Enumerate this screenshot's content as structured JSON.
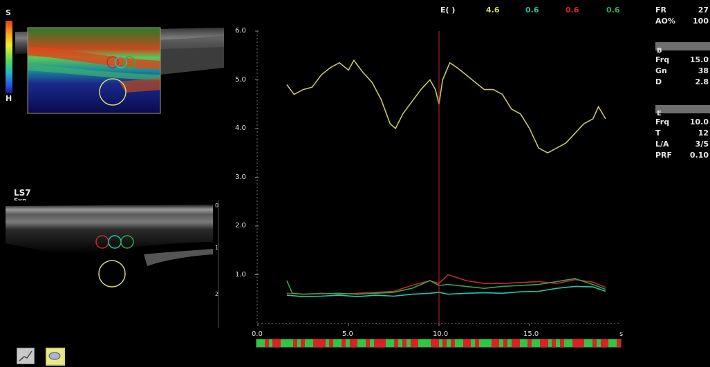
{
  "header": {
    "label": "E( )",
    "values": [
      {
        "text": "4.6",
        "color": "#d8d860"
      },
      {
        "text": "0.6",
        "color": "#20c0a8"
      },
      {
        "text": "0.6",
        "color": "#d02828"
      },
      {
        "text": "0.6",
        "color": "#30b050"
      }
    ]
  },
  "scale": {
    "top": "S",
    "bottom": "H"
  },
  "probe": {
    "name": "LS7",
    "mode": "Exp"
  },
  "depth_ticks": [
    "0",
    "1",
    "2"
  ],
  "params": {
    "top": [
      {
        "key": "FR",
        "value": "27"
      },
      {
        "key": "AO%",
        "value": "100"
      }
    ],
    "b_section": {
      "title": "B",
      "rows": [
        {
          "key": "Frq",
          "value": "15.0"
        },
        {
          "key": "Gn",
          "value": "38"
        },
        {
          "key": "D",
          "value": "2.8"
        }
      ]
    },
    "e_section": {
      "title": "E",
      "rows": [
        {
          "key": "Frq",
          "value": "10.0"
        },
        {
          "key": "T",
          "value": "12"
        },
        {
          "key": "L/A",
          "value": "3/5"
        },
        {
          "key": "PRF",
          "value": "0.10"
        }
      ]
    }
  },
  "chart_data": {
    "type": "line",
    "xlabel": "s",
    "ylabel": "",
    "xlim": [
      0,
      20
    ],
    "ylim": [
      0,
      6
    ],
    "x_ticks": [
      "0.0",
      "5.0",
      "10.0",
      "15.0"
    ],
    "y_ticks": [
      "1.0",
      "2.0",
      "3.0",
      "4.0",
      "5.0",
      "6.0"
    ],
    "cursor_x": 10.0,
    "series": [
      {
        "color": "#c8c860",
        "x": [
          1.6,
          2.0,
          2.5,
          3.0,
          3.5,
          4.0,
          4.5,
          5.0,
          5.3,
          5.8,
          6.3,
          6.8,
          7.3,
          7.6,
          8.0,
          8.5,
          9.0,
          9.5,
          9.8,
          10.0,
          10.2,
          10.6,
          11.0,
          11.5,
          12.0,
          12.5,
          13.0,
          13.5,
          14.0,
          14.5,
          15.0,
          15.5,
          16.0,
          16.5,
          17.0,
          17.5,
          18.0,
          18.5,
          18.8,
          19.2
        ],
        "y": [
          4.9,
          4.7,
          4.8,
          4.85,
          5.1,
          5.25,
          5.35,
          5.2,
          5.4,
          5.15,
          4.95,
          4.6,
          4.1,
          4.0,
          4.3,
          4.55,
          4.8,
          5.0,
          4.8,
          4.5,
          5.0,
          5.35,
          5.25,
          5.1,
          4.95,
          4.8,
          4.8,
          4.7,
          4.4,
          4.3,
          4.0,
          3.6,
          3.5,
          3.6,
          3.7,
          3.9,
          4.1,
          4.2,
          4.45,
          4.2
        ]
      },
      {
        "color": "#20c8b0",
        "x": [
          1.6,
          2.5,
          3.5,
          4.5,
          5.5,
          6.5,
          7.5,
          8.5,
          9.5,
          10.0,
          10.5,
          11.5,
          12.5,
          13.5,
          14.5,
          15.5,
          16.5,
          17.5,
          18.5,
          19.2
        ],
        "y": [
          0.58,
          0.55,
          0.56,
          0.58,
          0.55,
          0.58,
          0.56,
          0.6,
          0.62,
          0.64,
          0.6,
          0.62,
          0.63,
          0.62,
          0.65,
          0.66,
          0.72,
          0.76,
          0.75,
          0.66
        ]
      },
      {
        "color": "#c82828",
        "x": [
          1.6,
          2.5,
          3.5,
          4.5,
          5.5,
          6.5,
          7.5,
          8.5,
          9.5,
          10.0,
          10.5,
          11.5,
          12.5,
          13.5,
          14.5,
          15.5,
          16.5,
          17.5,
          18.5,
          19.2
        ],
        "y": [
          0.62,
          0.6,
          0.62,
          0.6,
          0.62,
          0.64,
          0.66,
          0.78,
          0.88,
          0.82,
          1.0,
          0.88,
          0.82,
          0.82,
          0.84,
          0.86,
          0.82,
          0.9,
          0.85,
          0.74
        ]
      },
      {
        "color": "#2ea84a",
        "x": [
          1.6,
          1.9,
          2.5,
          3.5,
          4.5,
          5.5,
          6.5,
          7.5,
          8.5,
          9.5,
          10.0,
          10.5,
          11.5,
          12.5,
          13.5,
          14.5,
          15.5,
          16.5,
          17.5,
          18.5,
          19.2
        ],
        "y": [
          0.88,
          0.62,
          0.6,
          0.61,
          0.62,
          0.6,
          0.62,
          0.64,
          0.72,
          0.88,
          0.78,
          0.8,
          0.76,
          0.72,
          0.76,
          0.78,
          0.8,
          0.86,
          0.92,
          0.8,
          0.7
        ]
      }
    ]
  }
}
